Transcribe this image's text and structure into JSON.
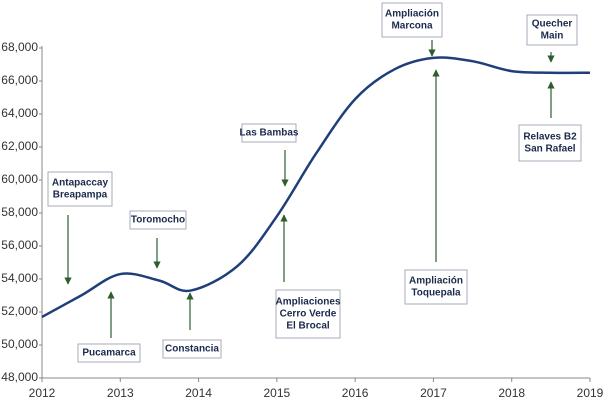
{
  "chart_data": {
    "type": "line",
    "x": [
      2012,
      2012.5,
      2013,
      2013.5,
      2013.9,
      2014.5,
      2015,
      2015.5,
      2016,
      2016.5,
      2017,
      2017.5,
      2018,
      2018.5,
      2019
    ],
    "values": [
      51700,
      53000,
      54300,
      53900,
      53300,
      54800,
      57800,
      61600,
      64900,
      66700,
      67400,
      67200,
      66600,
      66500,
      66500
    ],
    "color": "#1f3f7a",
    "xlim": [
      2012,
      2019
    ],
    "xticks": [
      2012,
      2013,
      2014,
      2015,
      2016,
      2017,
      2018,
      2019
    ],
    "ylim": [
      48000,
      68000
    ],
    "yticks": [
      {
        "value": 48000,
        "label": "48,000"
      },
      {
        "value": 50000,
        "label": "50,000"
      },
      {
        "value": 52000,
        "label": "52,000"
      },
      {
        "value": 54000,
        "label": "54,000"
      },
      {
        "value": 56000,
        "label": "56,000"
      },
      {
        "value": 58000,
        "label": "58,000"
      },
      {
        "value": 60000,
        "label": "60,000"
      },
      {
        "value": 62000,
        "label": "62,000"
      },
      {
        "value": 64000,
        "label": "64,000"
      },
      {
        "value": 66000,
        "label": "66,000"
      },
      {
        "value": 68000,
        "label": "68,000"
      }
    ],
    "grid": false,
    "annotations": [
      {
        "lines": [
          "Antapaccay",
          "Breapampa"
        ]
      },
      {
        "lines": [
          "Pucamarca"
        ]
      },
      {
        "lines": [
          "Toromocho"
        ]
      },
      {
        "lines": [
          "Constancia"
        ]
      },
      {
        "lines": [
          "Las Bambas"
        ]
      },
      {
        "lines": [
          "Ampliaciones",
          "Cerro Verde",
          "El Brocal"
        ]
      },
      {
        "lines": [
          "Ampliación",
          "Marcona"
        ]
      },
      {
        "lines": [
          "Ampliación",
          "Toquepala"
        ]
      },
      {
        "lines": [
          "Quecher",
          "Main"
        ]
      },
      {
        "lines": [
          "Relaves B2",
          "San Rafael"
        ]
      }
    ]
  }
}
